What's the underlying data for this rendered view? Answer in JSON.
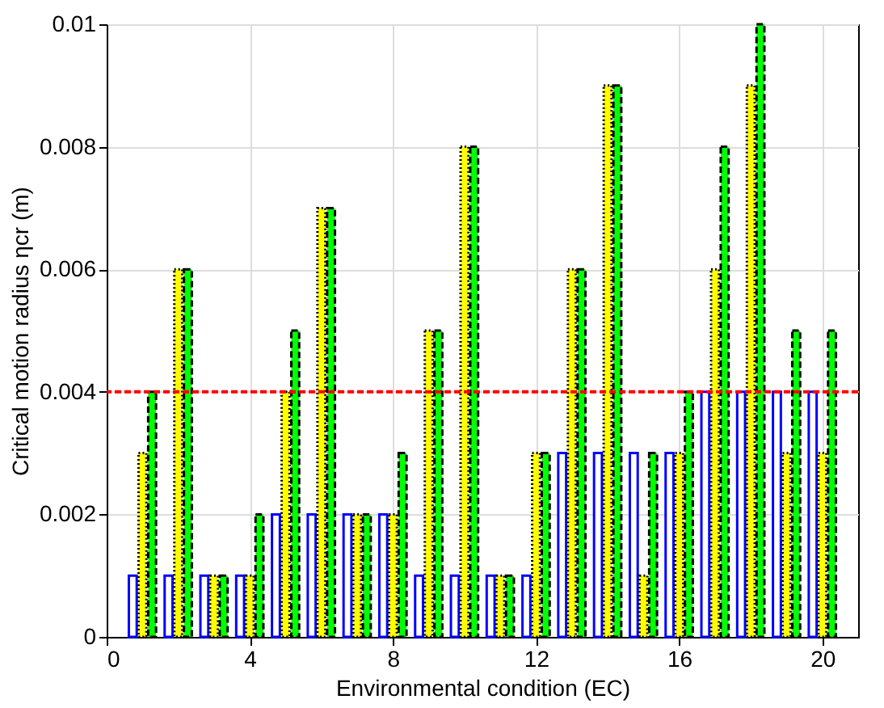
{
  "chart_data": {
    "type": "bar",
    "xlabel": "Environmental condition (EC)",
    "ylabel": "Critical motion radius ηcr (m)",
    "x": [
      1,
      2,
      3,
      4,
      5,
      6,
      7,
      8,
      9,
      10,
      11,
      12,
      13,
      14,
      15,
      16,
      17,
      18,
      19,
      20
    ],
    "series": [
      {
        "color": "#0000ff",
        "line_style": "solid",
        "values": [
          0.001,
          0.001,
          0.001,
          0.001,
          0.002,
          0.002,
          0.002,
          0.002,
          0.001,
          0.001,
          0.001,
          0.001,
          0.003,
          0.003,
          0.003,
          0.003,
          0.004,
          0.004,
          0.004,
          0.004
        ]
      },
      {
        "color": "#ffff00",
        "line_style": "dotted",
        "values": [
          0.003,
          0.006,
          0.001,
          0.001,
          0.004,
          0.007,
          0.002,
          0.002,
          0.005,
          0.008,
          0.001,
          0.003,
          0.006,
          0.009,
          0.001,
          0.003,
          0.006,
          0.009,
          0.003,
          0.003
        ]
      },
      {
        "color": "#00ff00",
        "line_style": "dashed",
        "values": [
          0.004,
          0.006,
          0.001,
          0.002,
          0.005,
          0.007,
          0.002,
          0.003,
          0.005,
          0.008,
          0.001,
          0.003,
          0.006,
          0.009,
          0.003,
          0.004,
          0.008,
          0.01,
          0.005,
          0.005
        ]
      }
    ],
    "xlim": [
      0,
      21
    ],
    "xticks": [
      0,
      4,
      8,
      12,
      16,
      20
    ],
    "ylim": [
      0,
      0.01
    ],
    "yticks": [
      0,
      0.002,
      0.004,
      0.006,
      0.008,
      0.01
    ],
    "ref_lines": [
      {
        "axis": "y",
        "value": 0.004,
        "color": "#ff0000",
        "line_style": "dashed"
      }
    ],
    "grid": true
  }
}
